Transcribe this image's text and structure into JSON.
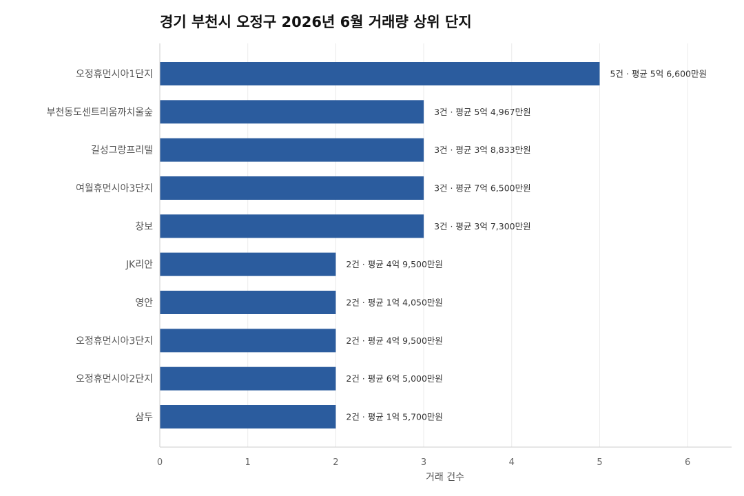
{
  "chart_data": {
    "type": "bar",
    "orientation": "horizontal",
    "title": "경기 부천시 오정구 2026년 6월 거래량 상위 단지",
    "xlabel": "거래 건수",
    "ylabel": "",
    "xlim": [
      0,
      6.5
    ],
    "xticks": [
      0,
      1,
      2,
      3,
      4,
      5,
      6
    ],
    "grid": "vertical",
    "bar_color": "#2b5c9e",
    "categories": [
      "오정휴먼시아1단지",
      "부천동도센트리움까치울숲",
      "길성그랑프리텔",
      "여월휴먼시아3단지",
      "창보",
      "JK리안",
      "영안",
      "오정휴먼시아3단지",
      "오정휴먼시아2단지",
      "삼두"
    ],
    "values": [
      5,
      3,
      3,
      3,
      3,
      2,
      2,
      2,
      2,
      2
    ],
    "data_labels": [
      "5건 · 평균 5억 6,600만원",
      "3건 · 평균 5억 4,967만원",
      "3건 · 평균 3억 8,833만원",
      "3건 · 평균 7억 6,500만원",
      "3건 · 평균 3억 7,300만원",
      "2건 · 평균 4억 9,500만원",
      "2건 · 평균 1억 4,050만원",
      "2건 · 평균 4억 9,500만원",
      "2건 · 평균 6억 5,000만원",
      "2건 · 평균 1억 5,700만원"
    ]
  }
}
